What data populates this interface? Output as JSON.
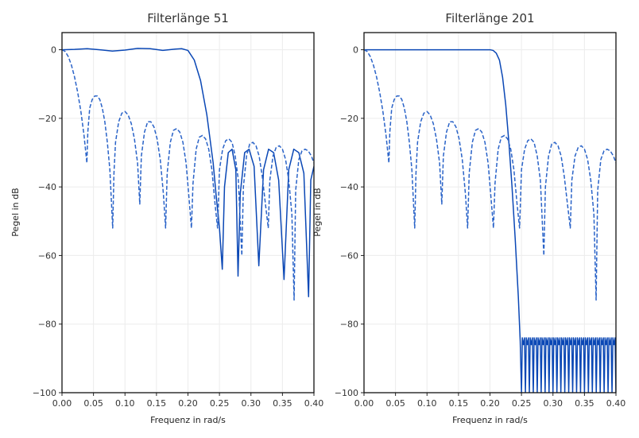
{
  "chart_data": [
    {
      "type": "line",
      "title": "Filterlänge 51",
      "xlabel": "Frequenz in rad/s",
      "ylabel": "Pegel in dB",
      "xlim": [
        0,
        0.4
      ],
      "ylim": [
        -100,
        5
      ],
      "xticks": [
        "0.00",
        "0.05",
        "0.10",
        "0.15",
        "0.20",
        "0.25",
        "0.30",
        "0.35",
        "0.40"
      ],
      "yticks": [
        "0",
        "−20",
        "−40",
        "−60",
        "−80",
        "−100"
      ],
      "xtick_values": [
        0,
        0.05,
        0.1,
        0.15,
        0.2,
        0.25,
        0.3,
        0.35,
        0.4
      ],
      "ytick_values": [
        0,
        -20,
        -40,
        -60,
        -80,
        -100
      ],
      "grid": true,
      "color": "#0a47b5",
      "series": [
        {
          "style": "solid",
          "x": [
            0,
            0.02,
            0.04,
            0.06,
            0.08,
            0.1,
            0.12,
            0.14,
            0.16,
            0.18,
            0.19,
            0.2,
            0.21,
            0.22,
            0.23,
            0.24,
            0.245,
            0.25,
            0.2545,
            0.258,
            0.264,
            0.27,
            0.276,
            0.2795,
            0.283,
            0.29,
            0.297,
            0.305,
            0.3125,
            0.32,
            0.328,
            0.336,
            0.344,
            0.3525,
            0.36,
            0.368,
            0.376,
            0.384,
            0.3915,
            0.395,
            0.4
          ],
          "y": [
            0,
            0.1,
            0.3,
            0.0,
            -0.4,
            -0.1,
            0.4,
            0.3,
            -0.2,
            0.2,
            0.3,
            -0.2,
            -3,
            -9,
            -19,
            -33,
            -43,
            -52,
            -64,
            -40,
            -30,
            -29,
            -35,
            -66,
            -42,
            -30,
            -29,
            -34,
            -63,
            -35,
            -29,
            -30,
            -38,
            -67,
            -35,
            -29,
            -30,
            -36,
            -72,
            -38,
            -34
          ]
        },
        {
          "style": "dashed",
          "x": [
            0,
            0.005,
            0.01,
            0.015,
            0.02,
            0.025,
            0.03,
            0.035,
            0.0395,
            0.041,
            0.044,
            0.048,
            0.052,
            0.056,
            0.06,
            0.064,
            0.068,
            0.072,
            0.076,
            0.0805,
            0.0825,
            0.085,
            0.09,
            0.095,
            0.1,
            0.105,
            0.11,
            0.115,
            0.12,
            0.1235,
            0.126,
            0.131,
            0.136,
            0.141,
            0.146,
            0.151,
            0.156,
            0.161,
            0.1645,
            0.167,
            0.172,
            0.177,
            0.182,
            0.187,
            0.192,
            0.197,
            0.202,
            0.2055,
            0.208,
            0.213,
            0.218,
            0.223,
            0.228,
            0.233,
            0.238,
            0.243,
            0.247,
            0.25,
            0.255,
            0.26,
            0.265,
            0.27,
            0.275,
            0.28,
            0.2855,
            0.288,
            0.293,
            0.298,
            0.303,
            0.308,
            0.313,
            0.318,
            0.323,
            0.3275,
            0.33,
            0.335,
            0.34,
            0.345,
            0.35,
            0.355,
            0.36,
            0.365,
            0.3685,
            0.371,
            0.376,
            0.381,
            0.386,
            0.391,
            0.396,
            0.4
          ],
          "y": [
            0,
            -0.5,
            -2,
            -4.5,
            -8,
            -12.5,
            -18,
            -25,
            -33,
            -24,
            -17,
            -14.5,
            -13.5,
            -13.5,
            -14.5,
            -17,
            -21,
            -27,
            -35,
            -52,
            -36,
            -27,
            -21,
            -18.5,
            -18,
            -19,
            -21.5,
            -26,
            -33,
            -45,
            -31,
            -24,
            -21,
            -21,
            -22.5,
            -26,
            -32,
            -42,
            -52,
            -36,
            -27,
            -23.5,
            -23,
            -24,
            -27,
            -33,
            -44,
            -52,
            -39,
            -29,
            -25.5,
            -25,
            -26,
            -29,
            -35,
            -45,
            -52,
            -35,
            -29,
            -26.5,
            -26,
            -27,
            -31,
            -38,
            -60,
            -40,
            -31,
            -27.5,
            -27,
            -28,
            -31,
            -37,
            -45,
            -52,
            -38,
            -31,
            -28.5,
            -28,
            -29,
            -32,
            -38,
            -48,
            -73,
            -41,
            -32,
            -29.5,
            -29,
            -29.5,
            -31,
            -33
          ]
        }
      ]
    },
    {
      "type": "line",
      "title": "Filterlänge 201",
      "xlabel": "Frequenz in rad/s",
      "ylabel": "Pegel in dB",
      "xlim": [
        0,
        0.4
      ],
      "ylim": [
        -100,
        5
      ],
      "xticks": [
        "0.00",
        "0.05",
        "0.10",
        "0.15",
        "0.20",
        "0.25",
        "0.30",
        "0.35",
        "0.40"
      ],
      "yticks": [
        "0",
        "−20",
        "−40",
        "−60",
        "−80",
        "−100"
      ],
      "xtick_values": [
        0,
        0.05,
        0.1,
        0.15,
        0.2,
        0.25,
        0.3,
        0.35,
        0.4
      ],
      "ytick_values": [
        0,
        -20,
        -40,
        -60,
        -80,
        -100
      ],
      "grid": true,
      "color": "#0a47b5",
      "series": [
        {
          "style": "solid",
          "x": [
            0,
            0.2,
            0.205,
            0.21,
            0.215,
            0.22,
            0.225,
            0.23,
            0.235,
            0.24,
            0.245,
            0.248,
            0.25
          ],
          "y": [
            0,
            0,
            -0.2,
            -1,
            -3,
            -8,
            -16,
            -27,
            -40,
            -55,
            -72,
            -85,
            -100
          ],
          "ripple": {
            "from": 0.25,
            "to": 0.4,
            "peak": -86,
            "floor": -100,
            "count": 24
          }
        },
        {
          "style": "dashed",
          "x": [
            0,
            0.005,
            0.01,
            0.015,
            0.02,
            0.025,
            0.03,
            0.035,
            0.0395,
            0.041,
            0.044,
            0.048,
            0.052,
            0.056,
            0.06,
            0.064,
            0.068,
            0.072,
            0.076,
            0.0805,
            0.0825,
            0.085,
            0.09,
            0.095,
            0.1,
            0.105,
            0.11,
            0.115,
            0.12,
            0.1235,
            0.126,
            0.131,
            0.136,
            0.141,
            0.146,
            0.151,
            0.156,
            0.161,
            0.1645,
            0.167,
            0.172,
            0.177,
            0.182,
            0.187,
            0.192,
            0.197,
            0.202,
            0.2055,
            0.208,
            0.213,
            0.218,
            0.223,
            0.228,
            0.233,
            0.238,
            0.243,
            0.247,
            0.25,
            0.255,
            0.26,
            0.265,
            0.27,
            0.275,
            0.28,
            0.2855,
            0.288,
            0.293,
            0.298,
            0.303,
            0.308,
            0.313,
            0.318,
            0.323,
            0.3275,
            0.33,
            0.335,
            0.34,
            0.345,
            0.35,
            0.355,
            0.36,
            0.365,
            0.3685,
            0.371,
            0.376,
            0.381,
            0.386,
            0.391,
            0.396,
            0.4
          ],
          "y": [
            0,
            -0.5,
            -2,
            -4.5,
            -8,
            -12.5,
            -18,
            -25,
            -33,
            -24,
            -17,
            -14.5,
            -13.5,
            -13.5,
            -14.5,
            -17,
            -21,
            -27,
            -35,
            -52,
            -36,
            -27,
            -21,
            -18.5,
            -18,
            -19,
            -21.5,
            -26,
            -33,
            -45,
            -31,
            -24,
            -21,
            -21,
            -22.5,
            -26,
            -32,
            -42,
            -52,
            -36,
            -27,
            -23.5,
            -23,
            -24,
            -27,
            -33,
            -44,
            -52,
            -39,
            -29,
            -25.5,
            -25,
            -26,
            -29,
            -35,
            -45,
            -52,
            -35,
            -29,
            -26.5,
            -26,
            -27,
            -31,
            -38,
            -60,
            -40,
            -31,
            -27.5,
            -27,
            -28,
            -31,
            -37,
            -45,
            -52,
            -38,
            -31,
            -28.5,
            -28,
            -29,
            -32,
            -38,
            -48,
            -73,
            -41,
            -32,
            -29.5,
            -29,
            -29.5,
            -31,
            -33
          ]
        }
      ]
    }
  ]
}
